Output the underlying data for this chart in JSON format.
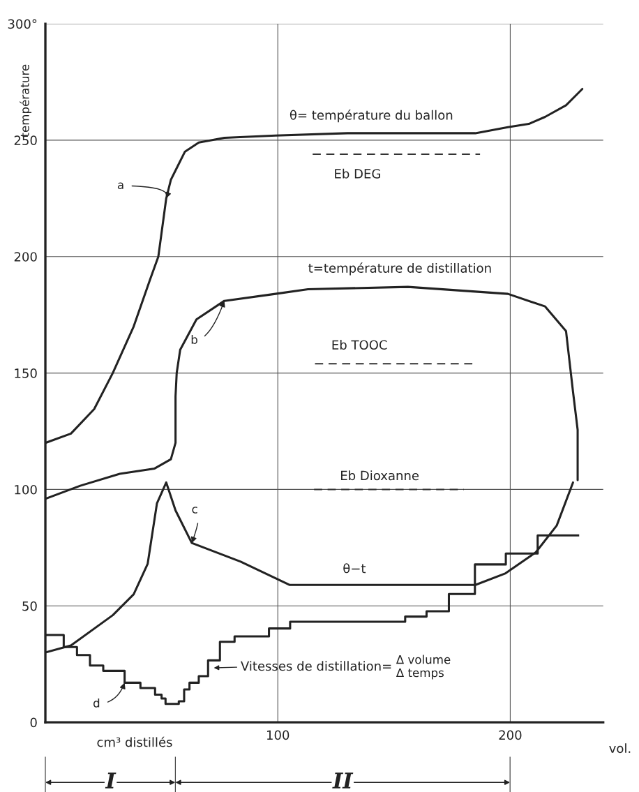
{
  "chart_data": {
    "type": "line",
    "ylabel": "température",
    "xlabel": "vol.",
    "xlim": [
      0,
      240
    ],
    "ylim": [
      0,
      300
    ],
    "xticks": [
      100,
      200
    ],
    "yticks": [
      0,
      50,
      100,
      150,
      200,
      250,
      {
        "value": 300,
        "label": "300°"
      }
    ],
    "grid": true,
    "series": [
      {
        "name": "a",
        "color": "#222222",
        "x": [
          0,
          11,
          21,
          29,
          38,
          45,
          48.6,
          52,
          54,
          56,
          60,
          66,
          77,
          99,
          130,
          160,
          185,
          199,
          208,
          215,
          224,
          231
        ],
        "values": [
          120,
          124,
          134.5,
          150,
          170,
          190,
          200,
          225,
          233,
          237,
          245,
          249,
          251,
          252,
          253,
          253,
          253,
          255.6,
          257,
          260,
          265,
          272
        ]
      },
      {
        "name": "b",
        "color": "#222222",
        "x": [
          0,
          15,
          32,
          47,
          54,
          56,
          56,
          56.5,
          58,
          65,
          77,
          99,
          113,
          156,
          199,
          215,
          224,
          227,
          229,
          229
        ],
        "values": [
          96,
          101.6,
          106.7,
          109,
          113,
          120,
          140,
          150,
          160,
          173,
          181,
          184,
          186,
          187,
          184,
          178.6,
          168,
          142,
          125.6,
          104
        ]
      },
      {
        "name": "c",
        "color": "#222222",
        "x": [
          0,
          11,
          29,
          38,
          44,
          48,
          52,
          56,
          63,
          84,
          105,
          130,
          160,
          185,
          198,
          211,
          220,
          227
        ],
        "values": [
          30,
          33,
          46,
          55,
          68,
          94,
          103,
          91,
          77,
          69,
          59,
          59,
          59,
          59,
          64,
          73,
          84.5,
          103
        ]
      },
      {
        "name": "d",
        "type": "step",
        "color": "#222222",
        "x": [
          0,
          7.9,
          13.6,
          19.2,
          24.9,
          34.1,
          40.9,
          47.2,
          50,
          51.7,
          57.4,
          59.7,
          62,
          66,
          70,
          75.1,
          81.4,
          96.2,
          105.3,
          154.8,
          164,
          173.6,
          184.8,
          198.1,
          211.8,
          229.2
        ],
        "values": [
          37.5,
          32.3,
          28.9,
          24.4,
          22.1,
          17,
          14.7,
          11.9,
          10.2,
          7.9,
          9,
          14.1,
          17,
          19.8,
          26.6,
          34.6,
          36.9,
          40.3,
          43.2,
          45.4,
          47.7,
          55.1,
          67.8,
          72.5,
          80.3,
          80.3
        ]
      },
      {
        "type": "line",
        "line_style": "dashed",
        "color": "#333333",
        "x": [
          115,
          187
        ],
        "values": [
          244,
          244
        ]
      },
      {
        "type": "line",
        "line_style": "dashed",
        "color": "#333333",
        "x": [
          116,
          184
        ],
        "values": [
          154,
          154
        ]
      },
      {
        "type": "line",
        "line_style": "dashed",
        "color": "#333333",
        "x": [
          115.6,
          180
        ],
        "values": [
          100,
          100
        ]
      }
    ],
    "annotations": [
      "Vitesses de distillation=",
      "Δ volume",
      "Δ temps",
      "θ= température du ballon",
      "t=température de distillation",
      "Eb DEG",
      "Eb TOOC",
      "Eb Dioxanne",
      "θ−t",
      "cm³ distillés",
      "I",
      "II"
    ]
  }
}
